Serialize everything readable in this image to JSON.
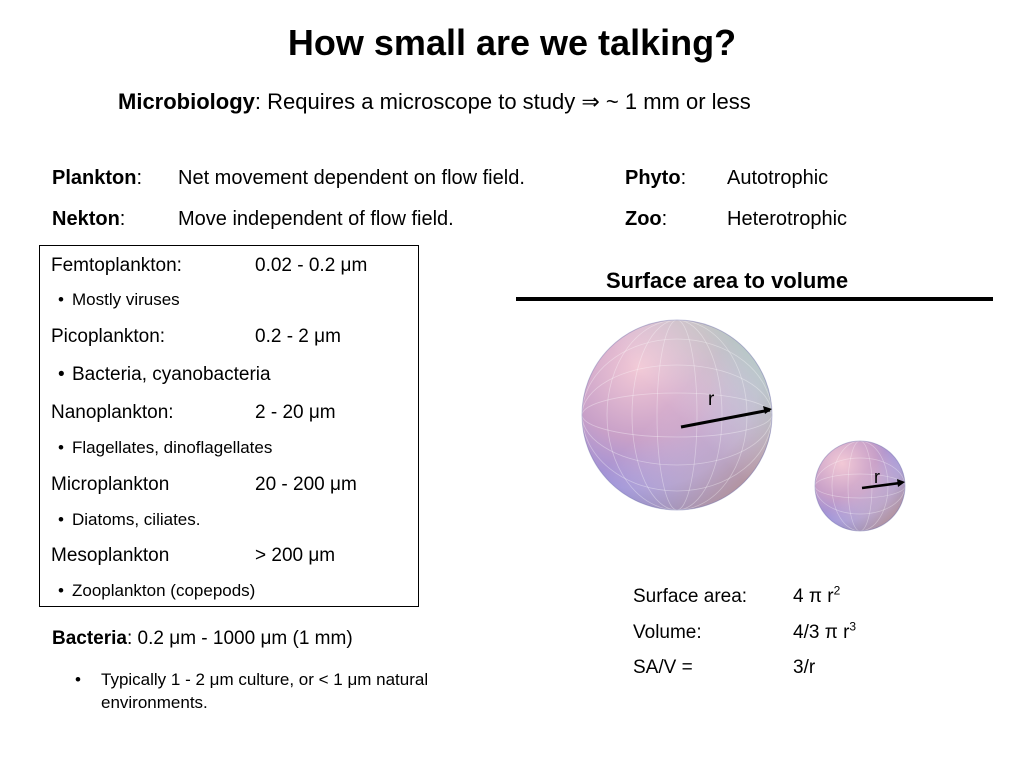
{
  "title": "How small are we talking?",
  "subtitle": {
    "bold": "Microbiology",
    "text": ":  Requires a microscope to study ⇒ ~ 1 mm or less"
  },
  "definitions": [
    {
      "term": "Plankton",
      "sep": ":",
      "desc": "Net movement dependent on flow field."
    },
    {
      "term": "Nekton",
      "sep": ":",
      "desc": "Move independent of flow field."
    },
    {
      "term": "Phyto",
      "sep": ":",
      "desc": "Autotrophic"
    },
    {
      "term": "Zoo",
      "sep": ":",
      "desc": "Heterotrophic"
    }
  ],
  "size_classes": [
    {
      "name": "Femtoplankton:",
      "range": "0.02 - 0.2 μm",
      "note": "Mostly viruses"
    },
    {
      "name": "Picoplankton:",
      "range": "0.2 - 2 μm",
      "note": "Bacteria, cyanobacteria"
    },
    {
      "name": "Nanoplankton:",
      "range": "2 - 20 μm",
      "note": "Flagellates, dinoflagellates"
    },
    {
      "name": "Microplankton",
      "range": "20 - 200 μm",
      "note": "Diatoms, ciliates."
    },
    {
      "name": "Mesoplankton",
      "range": "> 200 μm",
      "note": "Zooplankton (copepods)"
    }
  ],
  "surface_section": {
    "title": "Surface area to volume",
    "radius_label": "r",
    "formulas": [
      {
        "label": "Surface area:",
        "value": "4 π r",
        "sup": "2"
      },
      {
        "label": "Volume:",
        "value": "4/3 π r",
        "sup": "3"
      },
      {
        "label": "SA/V =",
        "value": "3/r",
        "sup": ""
      }
    ]
  },
  "bacteria": {
    "bold": "Bacteria",
    "text": ": 0.2 μm - 1000 μm (1 mm)",
    "bullet": "Typically 1 - 2 μm culture, or < 1 μm natural environments."
  },
  "colors": {
    "text": "#000000",
    "background": "#ffffff"
  }
}
